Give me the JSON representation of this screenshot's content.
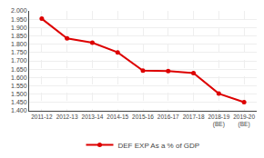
{
  "chart_data": {
    "type": "line",
    "categories": [
      "2011-12",
      "2012-13",
      "2013-14",
      "2014-15",
      "2015-16",
      "2016-17",
      "2017-18",
      "2018-19\n(BE)",
      "2019-20\n(BE)"
    ],
    "series": [
      {
        "name": "DEF EXP As a % of GDP",
        "color": "#dd0000",
        "marker": "circle",
        "line_style": "solid",
        "values": [
          1.953,
          1.835,
          1.809,
          1.751,
          1.641,
          1.638,
          1.626,
          1.503,
          1.452
        ]
      }
    ],
    "ylim": [
      1.4,
      2.0
    ],
    "yticks": [
      {
        "value": 1.4,
        "label": "1.400"
      },
      {
        "value": 1.45,
        "label": "1.450"
      },
      {
        "value": 1.5,
        "label": "1.500"
      },
      {
        "value": 1.55,
        "label": "1.550"
      },
      {
        "value": 1.6,
        "label": "1.600"
      },
      {
        "value": 1.65,
        "label": "1.650"
      },
      {
        "value": 1.7,
        "label": "1.700"
      },
      {
        "value": 1.75,
        "label": "1.750"
      },
      {
        "value": 1.8,
        "label": "1.800"
      },
      {
        "value": 1.85,
        "label": "1.850"
      },
      {
        "value": 1.9,
        "label": "1.900"
      },
      {
        "value": 1.95,
        "label": "1.950"
      },
      {
        "value": 2.0,
        "label": "2.000"
      }
    ],
    "grid": true,
    "legend": "bottom"
  }
}
